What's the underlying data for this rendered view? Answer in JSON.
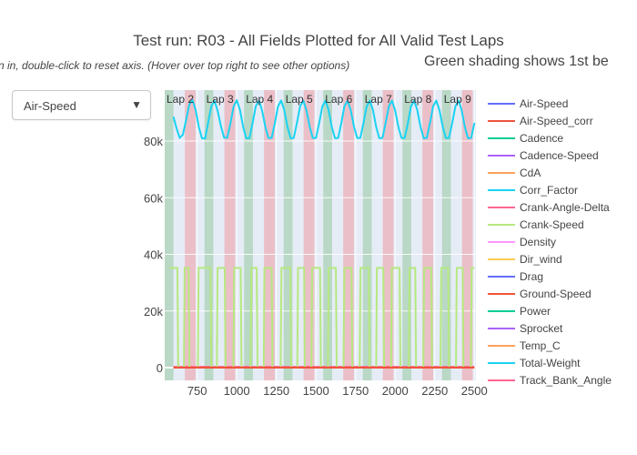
{
  "page": {
    "title": "Test run: R03 - All Fields Plotted for All Valid Test Laps",
    "subtitle": "n in, double-click to reset axis. (Hover over top right to see other options)",
    "note": "Green shading shows 1st be"
  },
  "dropdown": {
    "selected": "Air-Speed",
    "arrow": "▼"
  },
  "colors": {
    "green_band": "#b9d8c6",
    "red_band": "#ebbfc7",
    "plot_bg": "#e5ecf6",
    "grid": "#ffffff"
  },
  "chart_data": {
    "type": "line",
    "xlim": [
      545,
      2510
    ],
    "ylim": [
      -4500,
      98000
    ],
    "x_ticks": [
      750,
      1000,
      1250,
      1500,
      1750,
      2000,
      2250,
      2500
    ],
    "x_tick_labels": [
      "750",
      "1000",
      "1250",
      "1500",
      "1750",
      "2000",
      "2250",
      "2500"
    ],
    "y_ticks": [
      0,
      20000,
      40000,
      60000,
      80000
    ],
    "y_tick_labels": [
      "0",
      "20k",
      "40k",
      "60k",
      "80k"
    ],
    "grid": true,
    "legend_position": "right",
    "laps": [
      {
        "label": "Lap 2",
        "green_start": 545,
        "green_end": 600,
        "red_start": 672,
        "red_end": 740
      },
      {
        "label": "Lap 3",
        "green_start": 796,
        "green_end": 852,
        "red_start": 922,
        "red_end": 990
      },
      {
        "label": "Lap 4",
        "green_start": 1046,
        "green_end": 1102,
        "red_start": 1172,
        "red_end": 1240
      },
      {
        "label": "Lap 5",
        "green_start": 1296,
        "green_end": 1352,
        "red_start": 1422,
        "red_end": 1490
      },
      {
        "label": "Lap 6",
        "green_start": 1546,
        "green_end": 1602,
        "red_start": 1672,
        "red_end": 1740
      },
      {
        "label": "Lap 7",
        "green_start": 1796,
        "green_end": 1852,
        "red_start": 1922,
        "red_end": 1990
      },
      {
        "label": "Lap 8",
        "green_start": 2046,
        "green_end": 2102,
        "red_start": 2172,
        "red_end": 2240
      },
      {
        "label": "Lap 9",
        "green_start": 2296,
        "green_end": 2352,
        "red_start": 2422,
        "red_end": 2490
      }
    ],
    "series": [
      {
        "name": "Air-Speed",
        "color": "#636efa"
      },
      {
        "name": "Air-Speed_corr",
        "color": "#ef553b"
      },
      {
        "name": "Cadence",
        "color": "#00cc96"
      },
      {
        "name": "Cadence-Speed",
        "color": "#ab63fa"
      },
      {
        "name": "CdA",
        "color": "#ffa15a"
      },
      {
        "name": "Corr_Factor",
        "color": "#19d3f3",
        "x": [
          600,
          620,
          640,
          660,
          680,
          700,
          720,
          740,
          760,
          780,
          800,
          820,
          840,
          860,
          880,
          900,
          920,
          940,
          960,
          980,
          1000,
          1020,
          1040,
          1060,
          1080,
          1100,
          1120,
          1140,
          1160,
          1180,
          1200,
          1220,
          1240,
          1260,
          1280,
          1300,
          1320,
          1340,
          1360,
          1380,
          1400,
          1420,
          1440,
          1460,
          1480,
          1500,
          1520,
          1540,
          1560,
          1580,
          1600,
          1620,
          1640,
          1660,
          1680,
          1700,
          1720,
          1740,
          1760,
          1780,
          1800,
          1820,
          1840,
          1860,
          1880,
          1900,
          1920,
          1940,
          1960,
          1980,
          2000,
          2020,
          2040,
          2060,
          2080,
          2100,
          2120,
          2140,
          2160,
          2180,
          2200,
          2220,
          2240,
          2260,
          2280,
          2300,
          2320,
          2340,
          2360,
          2380,
          2400,
          2420,
          2440,
          2460,
          2480,
          2500
        ],
        "y": [
          88600,
          84400,
          81100,
          82300,
          87400,
          92900,
          94500,
          91200,
          85100,
          81000,
          80900,
          86800,
          92400,
          94200,
          90500,
          85200,
          81200,
          81200,
          86200,
          92200,
          94400,
          91000,
          85000,
          81000,
          81000,
          86400,
          92300,
          94300,
          90800,
          85100,
          81100,
          81100,
          86300,
          92200,
          94300,
          90900,
          85000,
          81000,
          81100,
          86400,
          92300,
          94300,
          90800,
          85100,
          81100,
          81100,
          86300,
          92200,
          94300,
          90900,
          85000,
          81000,
          81100,
          86400,
          92300,
          94300,
          90800,
          85100,
          81100,
          81100,
          86300,
          92200,
          94300,
          90900,
          85000,
          81000,
          81100,
          86400,
          92300,
          94300,
          90800,
          85100,
          81100,
          81100,
          86300,
          92200,
          94300,
          90900,
          85000,
          81000,
          81100,
          86400,
          92300,
          94300,
          90800,
          85100,
          81100,
          81100,
          86300,
          92200,
          94300,
          90900,
          85000,
          81000,
          81100,
          86400
        ]
      },
      {
        "name": "Crank-Angle-Delta",
        "color": "#ff6692",
        "x": [
          600,
          2500
        ],
        "y": [
          300,
          300
        ]
      },
      {
        "name": "Crank-Speed",
        "color": "#b6e880",
        "x": [
          575,
          625,
          630,
          666,
          671,
          696,
          701,
          754,
          759,
          834,
          839,
          874,
          879,
          924,
          929,
          979,
          984,
          1025,
          1030,
          1087,
          1092,
          1126,
          1131,
          1170,
          1175,
          1220,
          1225,
          1277,
          1282,
          1338,
          1343,
          1382,
          1387,
          1425,
          1430,
          1471,
          1476,
          1526,
          1531,
          1576,
          1581,
          1626,
          1631,
          1674,
          1679,
          1724,
          1729,
          1776,
          1781,
          1834,
          1839,
          1880,
          1885,
          1925,
          1930,
          1974,
          1979,
          2028,
          2033,
          2086,
          2091,
          2127,
          2132,
          2178,
          2183,
          2228,
          2233,
          2286,
          2291,
          2335,
          2340,
          2384,
          2389,
          2426,
          2431,
          2478,
          2483,
          2500
        ],
        "y": [
          35200,
          35200,
          0,
          0,
          35200,
          35200,
          0,
          0,
          35200,
          35200,
          0,
          0,
          35200,
          35200,
          0,
          0,
          35200,
          35200,
          0,
          0,
          35200,
          35200,
          0,
          0,
          35200,
          35200,
          0,
          0,
          35200,
          35200,
          0,
          0,
          35200,
          35200,
          0,
          0,
          35200,
          35200,
          0,
          0,
          35200,
          35200,
          0,
          0,
          35200,
          35200,
          0,
          0,
          35200,
          35200,
          0,
          0,
          35200,
          35200,
          0,
          0,
          35200,
          35200,
          0,
          0,
          35200,
          35200,
          0,
          0,
          35200,
          35200,
          0,
          0,
          35200,
          35200,
          0,
          0,
          35200,
          35200,
          0,
          0,
          35200,
          35200
        ]
      },
      {
        "name": "Density",
        "color": "#ff97ff"
      },
      {
        "name": "Dir_wind",
        "color": "#fecb52"
      },
      {
        "name": "Drag",
        "color": "#636efa"
      },
      {
        "name": "Ground-Speed",
        "color": "#ef553b",
        "x": [
          600,
          2500
        ],
        "y": [
          0,
          0
        ]
      },
      {
        "name": "Power",
        "color": "#00cc96"
      },
      {
        "name": "Sprocket",
        "color": "#ab63fa"
      },
      {
        "name": "Temp_C",
        "color": "#ffa15a"
      },
      {
        "name": "Total-Weight",
        "color": "#19d3f3"
      },
      {
        "name": "Track_Bank_Angle",
        "color": "#ff6692"
      }
    ]
  }
}
